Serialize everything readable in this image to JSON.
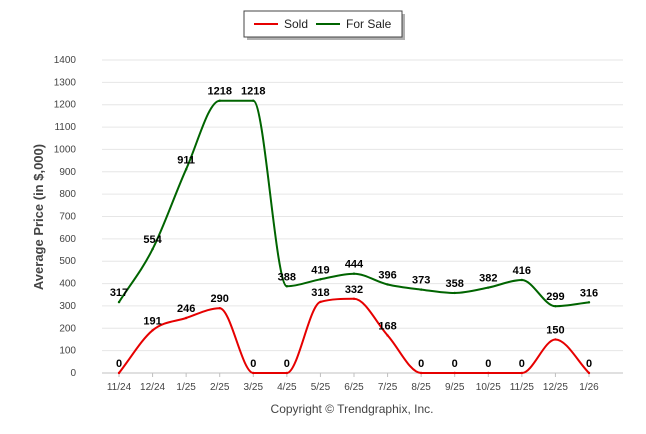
{
  "chart_data": {
    "type": "line",
    "title": "",
    "xlabel": "",
    "ylabel": "Average Price (in $,000)",
    "ylim": [
      0,
      1400
    ],
    "yticks": [
      0,
      100,
      200,
      300,
      400,
      500,
      600,
      700,
      800,
      900,
      1000,
      1100,
      1200,
      1300,
      1400
    ],
    "grid": true,
    "legend_position": "top-center",
    "categories": [
      "11/24",
      "12/24",
      "1/25",
      "2/25",
      "3/25",
      "4/25",
      "5/25",
      "6/25",
      "7/25",
      "8/25",
      "9/25",
      "10/25",
      "11/25",
      "12/25",
      "1/26"
    ],
    "series": [
      {
        "name": "Sold",
        "color": "#e60000",
        "values": [
          0,
          191,
          246,
          290,
          0,
          0,
          318,
          332,
          168,
          0,
          0,
          0,
          0,
          150,
          0
        ]
      },
      {
        "name": "For Sale",
        "color": "#006400",
        "values": [
          317,
          554,
          911,
          1218,
          1218,
          388,
          419,
          444,
          396,
          373,
          358,
          382,
          416,
          299,
          316
        ]
      }
    ],
    "caption": "Copyright © Trendgraphix, Inc."
  }
}
